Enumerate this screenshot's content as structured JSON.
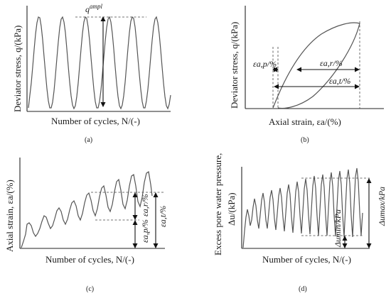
{
  "panels": {
    "a": {
      "caption": "(a)",
      "ylabel": "Deviator stress, q/(kPa)",
      "xlabel": "Number of cycles, N/(-)",
      "annotation": "q^ampl",
      "annotation_base": "q",
      "annotation_sup": "ampl"
    },
    "b": {
      "caption": "(b)",
      "ylabel": "Deviator stress, q/(kPa)",
      "xlabel": "Axial strain, εa/(%)",
      "annotation_permanent": "εa,p/%",
      "annotation_resilient": "εa,r/%",
      "annotation_total": "εa,t/%"
    },
    "c": {
      "caption": "(c)",
      "ylabel": "Axial strain, εa/(%)",
      "xlabel": "Number of cycles, N/(-)",
      "annotation_resilient": "εa,r/%",
      "annotation_permanent": "εa,p/%",
      "annotation_total": "εa,t/%"
    },
    "d": {
      "caption": "(d)",
      "ylabel_line1": "Excess pore water pressure,",
      "ylabel_line2": "Δu/(kPa)",
      "xlabel": "Number of cycles, N/(-)",
      "annotation_min": "Δumin/kPa",
      "annotation_max": "Δumax/kPa"
    }
  }
}
